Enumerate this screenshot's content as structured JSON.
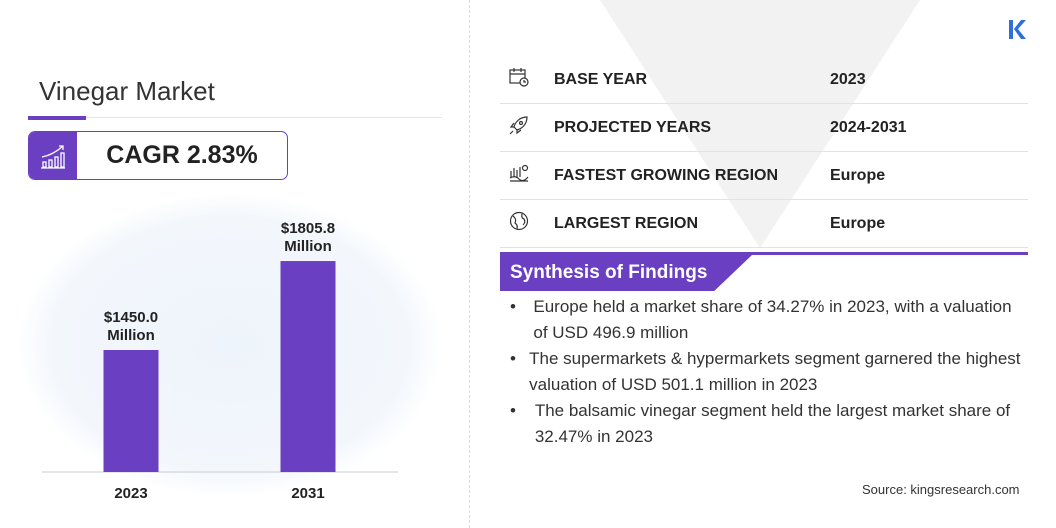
{
  "title": "Vinegar Market",
  "cagr": "CAGR 2.83%",
  "colors": {
    "accent": "#6a3fc2",
    "brand": "#2f6fd6"
  },
  "chart_data": {
    "type": "bar",
    "categories": [
      "2023",
      "2031"
    ],
    "values": [
      1450.0,
      1805.8
    ],
    "data_labels": [
      [
        "$1450.0",
        "Million"
      ],
      [
        "$1805.8",
        "Million"
      ]
    ],
    "title": "",
    "xlabel": "",
    "ylabel": "",
    "ylim": [
      962,
      2050
    ],
    "grid": false,
    "color": "#6a3fc2"
  },
  "table": [
    {
      "icon": "calendar-icon",
      "label": "BASE YEAR",
      "value": "2023"
    },
    {
      "icon": "rocket-icon",
      "label": "PROJECTED YEARS",
      "value": "2024-2031"
    },
    {
      "icon": "growth-region-icon",
      "label": "FASTEST GROWING REGION",
      "value": "Europe"
    },
    {
      "icon": "globe-icon",
      "label": "LARGEST REGION",
      "value": "Europe"
    }
  ],
  "synthesis": {
    "heading": "Synthesis of Findings",
    "bullets": [
      "Europe held a market share of 34.27% in 2023, with a valuation of USD 496.9 million",
      "The supermarkets & hypermarkets segment garnered the highest valuation of USD 501.1 million in 2023",
      "The balsamic vinegar segment held the largest market share of 32.47% in 2023"
    ]
  },
  "source": "Source:  kingsresearch.com"
}
